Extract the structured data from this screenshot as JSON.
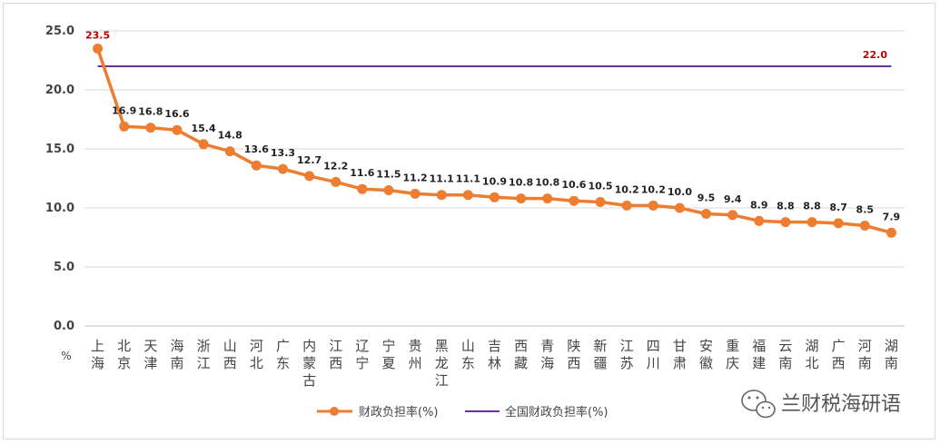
{
  "chart_data": {
    "type": "line",
    "unit_label": "%",
    "ylim": [
      0,
      25
    ],
    "yticks": [
      "0.0",
      "5.0",
      "10.0",
      "15.0",
      "20.0",
      "25.0"
    ],
    "grid": true,
    "legend_position": "bottom",
    "categories": [
      "上海",
      "北京",
      "天津",
      "海南",
      "浙江",
      "山西",
      "河北",
      "广东",
      "内蒙古",
      "江西",
      "辽宁",
      "宁夏",
      "贵州",
      "黑龙江",
      "山东",
      "吉林",
      "西藏",
      "青海",
      "陕西",
      "新疆",
      "江苏",
      "四川",
      "甘肃",
      "安徽",
      "重庆",
      "福建",
      "云南",
      "湖北",
      "广西",
      "河南",
      "湖南"
    ],
    "series": [
      {
        "name": "财政负担率(%)",
        "color": "#ed7d31",
        "values": [
          23.5,
          16.9,
          16.8,
          16.6,
          15.4,
          14.8,
          13.6,
          13.3,
          12.7,
          12.2,
          11.6,
          11.5,
          11.2,
          11.1,
          11.1,
          10.9,
          10.8,
          10.8,
          10.6,
          10.5,
          10.2,
          10.2,
          10.0,
          9.5,
          9.4,
          8.9,
          8.8,
          8.8,
          8.7,
          8.5,
          7.9
        ],
        "labels": [
          "23.5",
          "16.9",
          "16.8",
          "16.6",
          "15.4",
          "14.8",
          "13.6",
          "13.3",
          "12.7",
          "12.2",
          "11.6",
          "11.5",
          "11.2",
          "11.1",
          "11.1",
          "10.9",
          "10.8",
          "10.8",
          "10.6",
          "10.5",
          "10.2",
          "10.2",
          "10.0",
          "9.5",
          "9.4",
          "8.9",
          "8.8",
          "8.8",
          "8.7",
          "8.5",
          "7.9"
        ]
      },
      {
        "name": "全国财政负担率(%)",
        "color": "#7030a0",
        "value": 22.0,
        "label": "22.0"
      }
    ]
  },
  "watermark": {
    "text": "兰财税海研语",
    "icon": "wechat-icon"
  }
}
